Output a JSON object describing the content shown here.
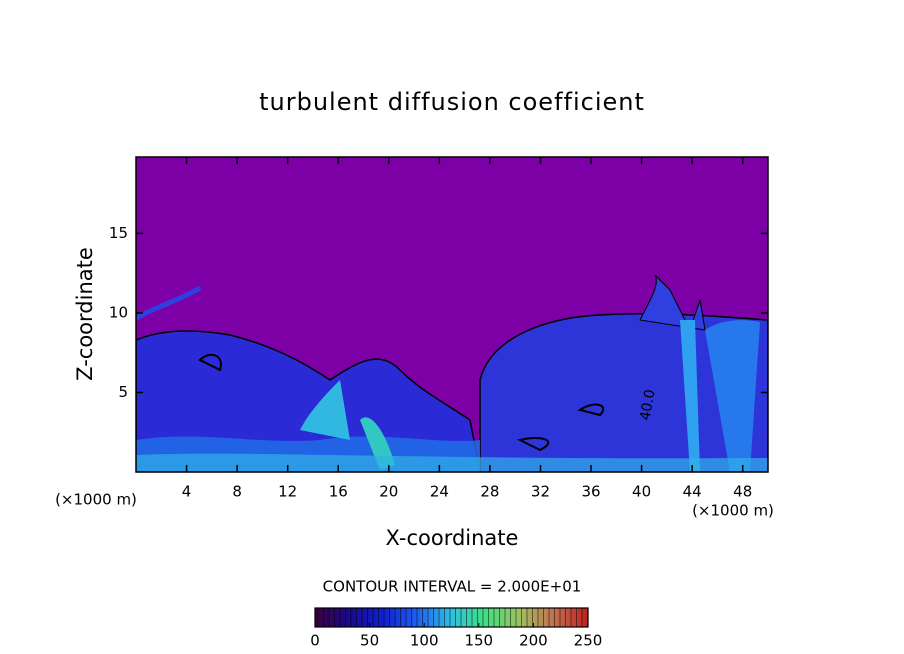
{
  "chart_data": {
    "type": "contour",
    "title": "turbulent diffusion coefficient",
    "x_label": "X-coordinate",
    "y_label": "Z-coordinate",
    "x_unit": "(×1000 m)",
    "xlim": [
      0,
      50
    ],
    "xticks": [
      4,
      8,
      12,
      16,
      20,
      24,
      28,
      32,
      36,
      40,
      44,
      48
    ],
    "ylim": [
      0,
      19.8
    ],
    "yticks": [
      5,
      10,
      15
    ],
    "contour_interval_label": "CONTOUR INTERVAL = 2.000E+01",
    "contour_labels": [
      "40.0"
    ],
    "clim": [
      0,
      250
    ],
    "cticks": [
      0,
      50,
      100,
      150,
      200,
      250
    ],
    "colormap": [
      "#3a0040",
      "#1a0a8a",
      "#1020d0",
      "#2060f0",
      "#30c0e0",
      "#40e080",
      "#a0c060",
      "#c07050",
      "#c02020"
    ]
  }
}
